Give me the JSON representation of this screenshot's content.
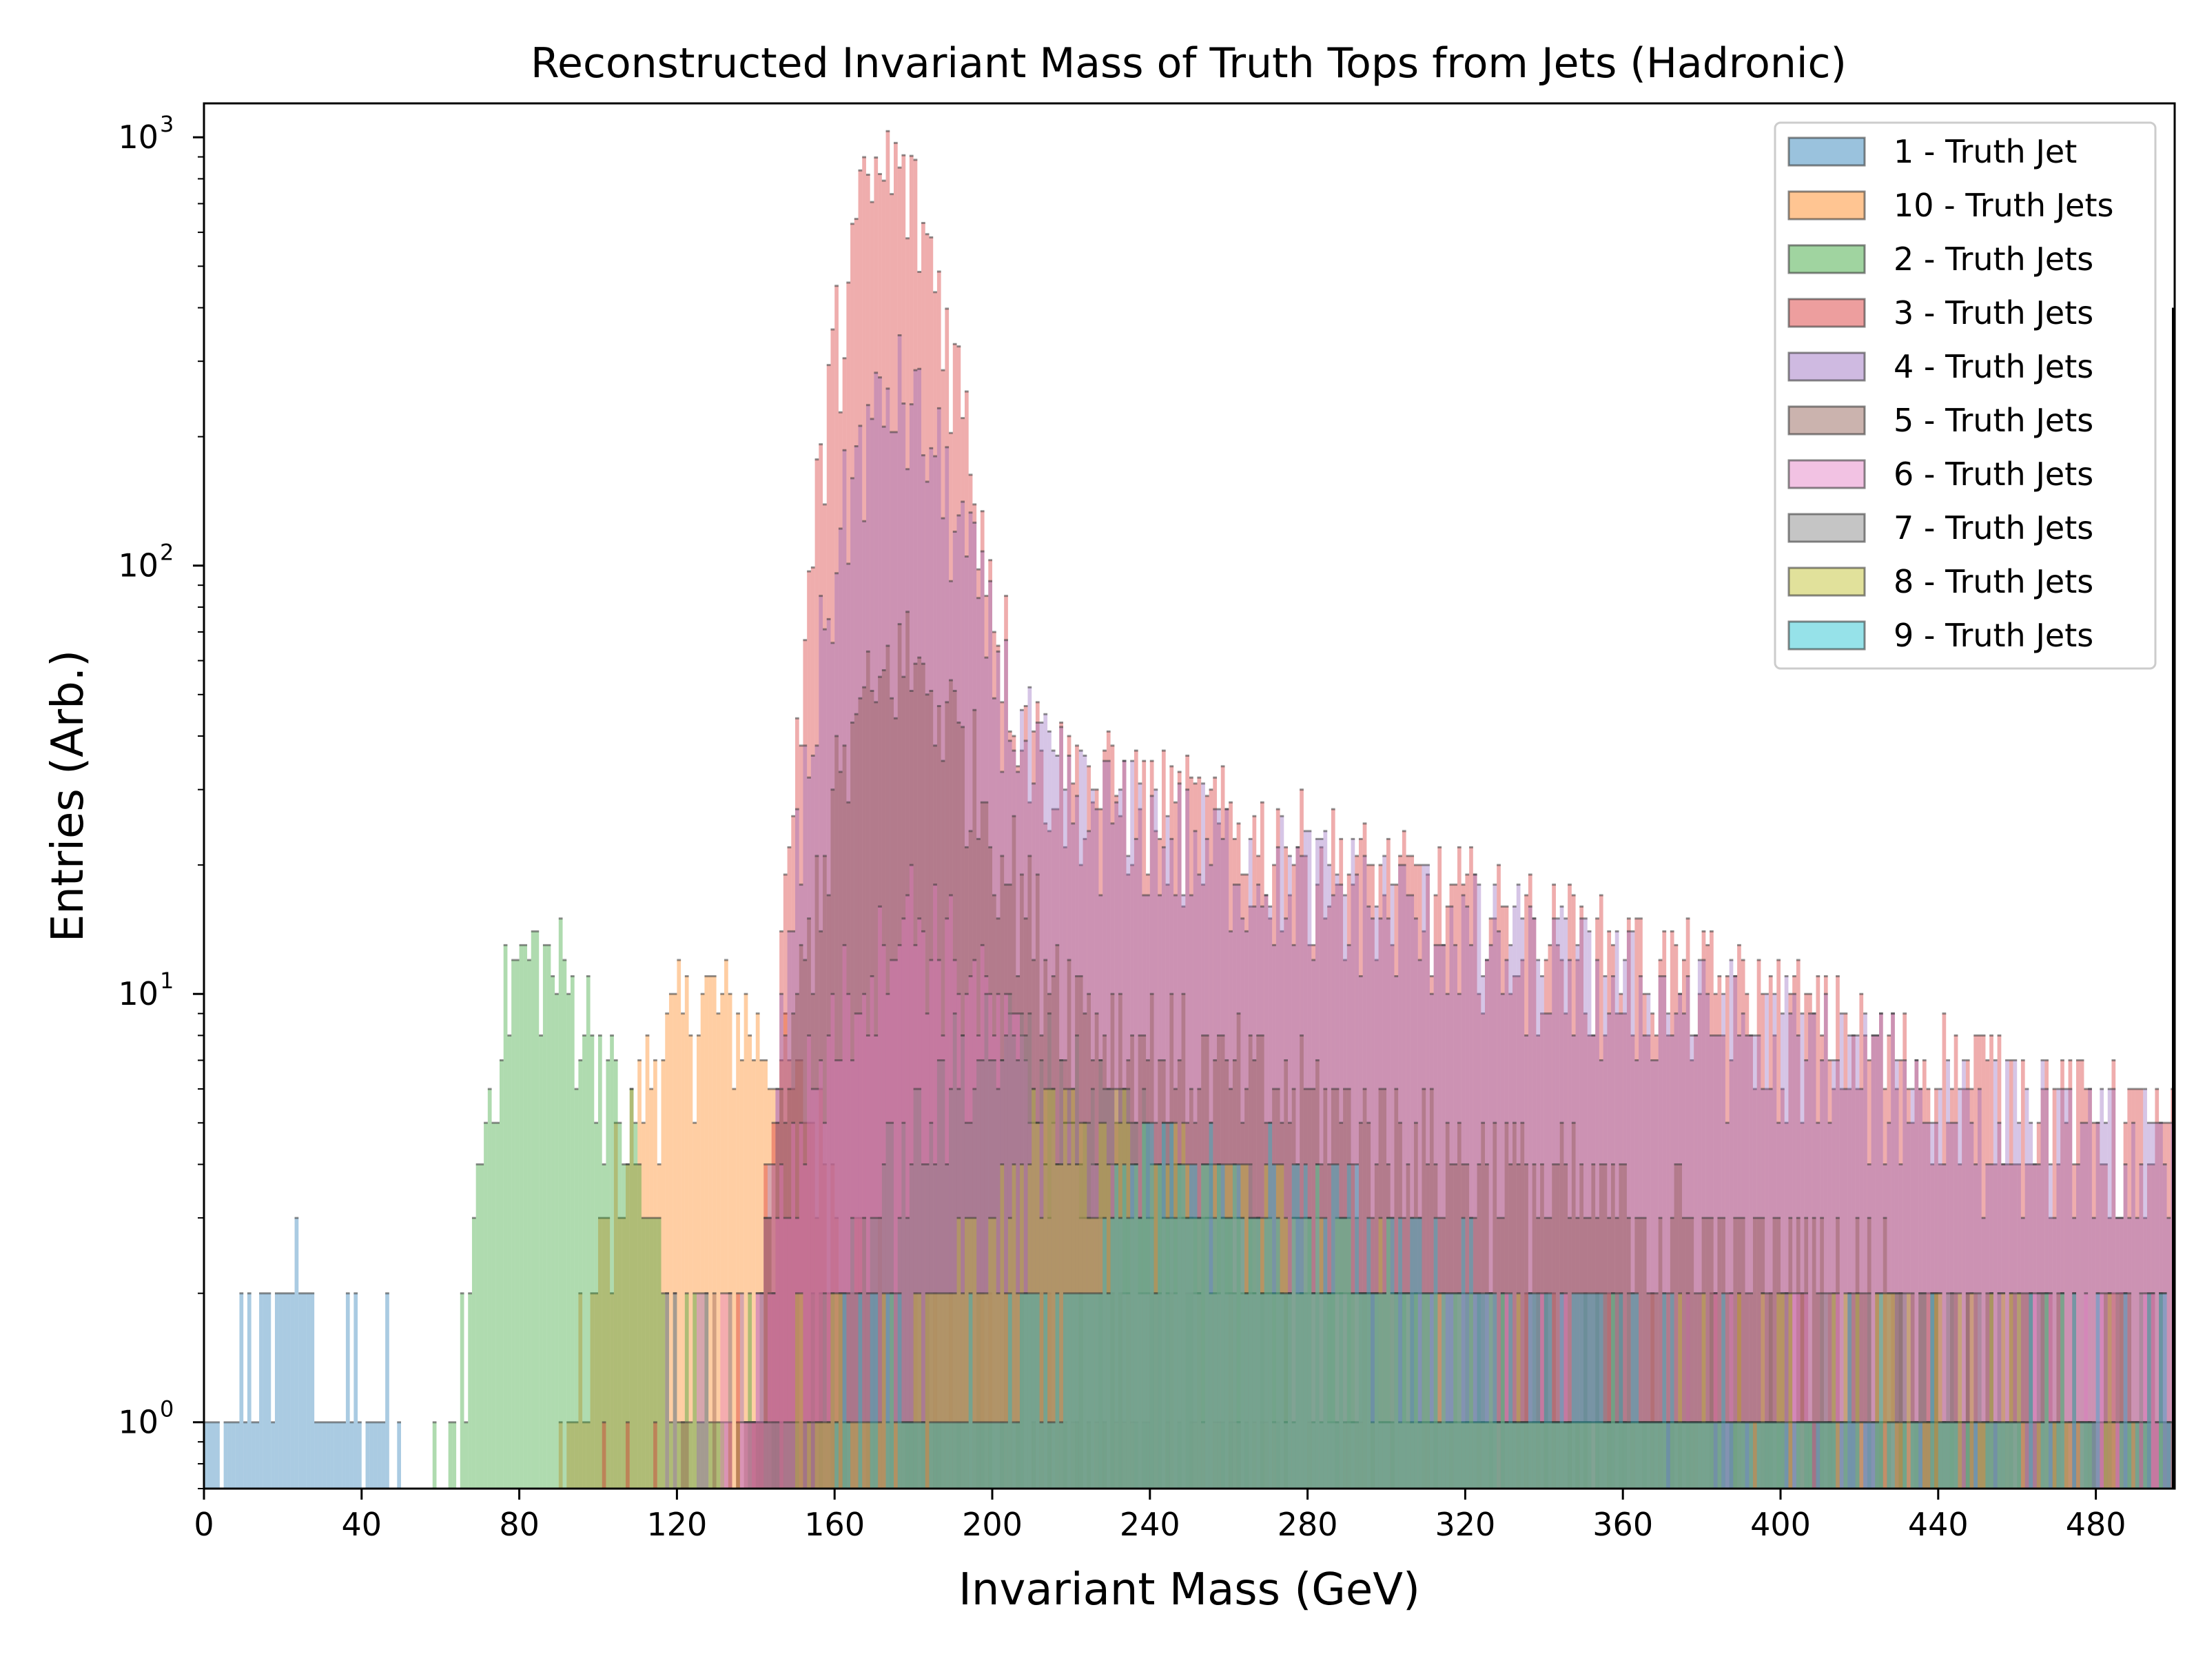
{
  "chart_data": {
    "type": "histogram",
    "title": "Reconstructed Invariant Mass of Truth Tops from Jets (Hadronic)",
    "xlabel": "Invariant Mass (GeV)",
    "ylabel": "Entries (Arb.)",
    "xlim": [
      0,
      500
    ],
    "ylim": [
      0.7,
      1200
    ],
    "yscale": "log",
    "grid": false,
    "legend_position": "top-right",
    "x_ticks": [
      0,
      40,
      80,
      120,
      160,
      200,
      240,
      280,
      320,
      360,
      400,
      440,
      480
    ],
    "x_tick_labels": [
      "0",
      "40",
      "80",
      "120",
      "160",
      "200",
      "240",
      "280",
      "320",
      "360",
      "400",
      "440",
      "480"
    ],
    "y_ticks": [
      {
        "value": 1,
        "base": "10",
        "exp": "0"
      },
      {
        "value": 10,
        "base": "10",
        "exp": "1"
      },
      {
        "value": 100,
        "base": "10",
        "exp": "2"
      },
      {
        "value": 1000,
        "base": "10",
        "exp": "3"
      }
    ],
    "series": [
      {
        "name": "1 - Truth Jet",
        "color": "#1f77b4",
        "peak_x": 20,
        "peak_y": 2,
        "sigma_low": 12,
        "sigma_high": 12,
        "tail": 0,
        "xmin": 0,
        "xmax": 55
      },
      {
        "name": "10 - Truth Jets",
        "color": "#ff7f0e",
        "peak_x": 125,
        "peak_y": 9,
        "sigma_low": 15,
        "sigma_high": 25,
        "tail": 0.5,
        "xmin": 90,
        "xmax": 500
      },
      {
        "name": "2 - Truth Jets",
        "color": "#2ca02c",
        "peak_x": 82,
        "peak_y": 12,
        "sigma_low": 8,
        "sigma_high": 18,
        "tail": 0.3,
        "xmin": 55,
        "xmax": 500
      },
      {
        "name": "3 - Truth Jets",
        "color": "#d62728",
        "peak_x": 172.5,
        "peak_y": 800,
        "sigma_low": 9,
        "sigma_high": 12,
        "tail": 45,
        "xmin": 100,
        "xmax": 500
      },
      {
        "name": "4 - Truth Jets",
        "color": "#9467bd",
        "peak_x": 172.5,
        "peak_y": 220,
        "sigma_low": 10,
        "sigma_high": 14,
        "tail": 40,
        "xmin": 110,
        "xmax": 500
      },
      {
        "name": "5 - Truth Jets",
        "color": "#8c564b",
        "peak_x": 173,
        "peak_y": 50,
        "sigma_low": 12,
        "sigma_high": 18,
        "tail": 12,
        "xmin": 120,
        "xmax": 500
      },
      {
        "name": "6 - Truth Jets",
        "color": "#e377c2",
        "peak_x": 173,
        "peak_y": 12,
        "sigma_low": 16,
        "sigma_high": 22,
        "tail": 4,
        "xmin": 130,
        "xmax": 500
      },
      {
        "name": "7 - Truth Jets",
        "color": "#7f7f7f",
        "peak_x": 190,
        "peak_y": 5,
        "sigma_low": 20,
        "sigma_high": 40,
        "tail": 3,
        "xmin": 140,
        "xmax": 500
      },
      {
        "name": "8 - Truth Jets",
        "color": "#bcbd22",
        "peak_x": 210,
        "peak_y": 3,
        "sigma_low": 25,
        "sigma_high": 60,
        "tail": 2,
        "xmin": 150,
        "xmax": 500
      },
      {
        "name": "9 - Truth Jets",
        "color": "#17becf",
        "peak_x": 230,
        "peak_y": 2,
        "sigma_low": 30,
        "sigma_high": 80,
        "tail": 2,
        "xmin": 160,
        "xmax": 500
      }
    ]
  }
}
